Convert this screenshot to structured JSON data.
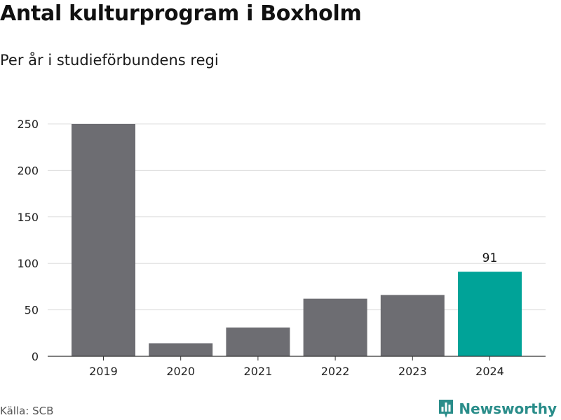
{
  "title": "Antal kulturprogram i Boxholm",
  "subtitle": "Per år i studieförbundens regi",
  "source": "Källa: SCB",
  "brand": {
    "name": "Newsworthy",
    "icon": "newsworthy-logo-icon"
  },
  "colors": {
    "bar": "#6d6d72",
    "highlight": "#00a398",
    "grid": "#dddddd",
    "axis": "#333333",
    "brand": "#2a8d8a"
  },
  "chart_data": {
    "type": "bar",
    "categories": [
      "2019",
      "2020",
      "2021",
      "2022",
      "2023",
      "2024"
    ],
    "values": [
      250,
      14,
      31,
      62,
      66,
      91
    ],
    "highlight_index": 5,
    "data_labels": [
      {
        "index": 5,
        "text": "91"
      }
    ],
    "yticks": [
      0,
      50,
      100,
      150,
      200,
      250
    ],
    "ylim": [
      0,
      250
    ],
    "xlabel": "",
    "ylabel": "",
    "grid": true
  }
}
